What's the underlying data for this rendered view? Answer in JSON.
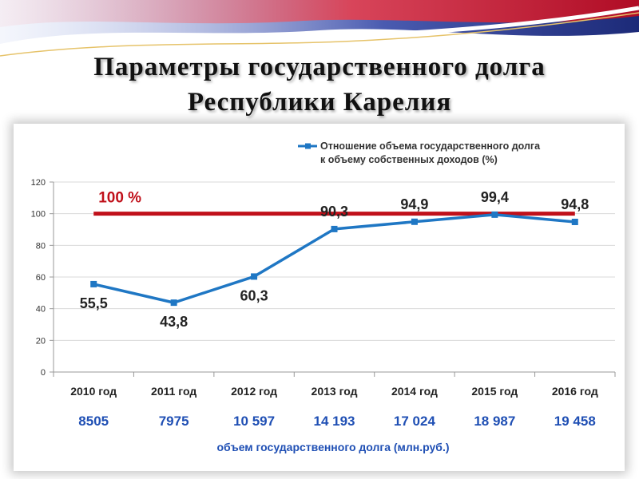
{
  "slide": {
    "title_line1": "Параметры государственного долга",
    "title_line2": "Республики Карелия"
  },
  "colors": {
    "series": "#1f77c4",
    "reference": "#c0101a",
    "debt_values": "#1f4fb4",
    "banner_red": "#c8102e",
    "banner_blue": "#2b3a8c"
  },
  "chart_data": {
    "type": "line",
    "categories": [
      "2010 год",
      "2011 год",
      "2012 год",
      "2013 год",
      "2014 год",
      "2015 год",
      "2016 год"
    ],
    "series": [
      {
        "name": "Отношение объема государственного долга к объему собственных доходов (%)",
        "values": [
          55.5,
          43.8,
          60.3,
          90.3,
          94.9,
          99.4,
          94.8
        ],
        "labels": [
          "55,5",
          "43,8",
          "60,3",
          "90,3",
          "94,9",
          "99,4",
          "94,8"
        ]
      }
    ],
    "legend_line1": "Отношение объема государственного долга",
    "legend_line2": "к объему собственных доходов (%)",
    "legend_position": "top-right",
    "reference_line": {
      "value": 100,
      "label": "100 %"
    },
    "ylim": [
      0,
      120
    ],
    "yticks": [
      0,
      20,
      40,
      60,
      80,
      100,
      120
    ],
    "grid": true,
    "debt_values": [
      "8505",
      "7975",
      "10 597",
      "14 193",
      "17 024",
      "18 987",
      "19 458"
    ],
    "debt_caption": "объем государственного долга (млн.руб.)"
  }
}
